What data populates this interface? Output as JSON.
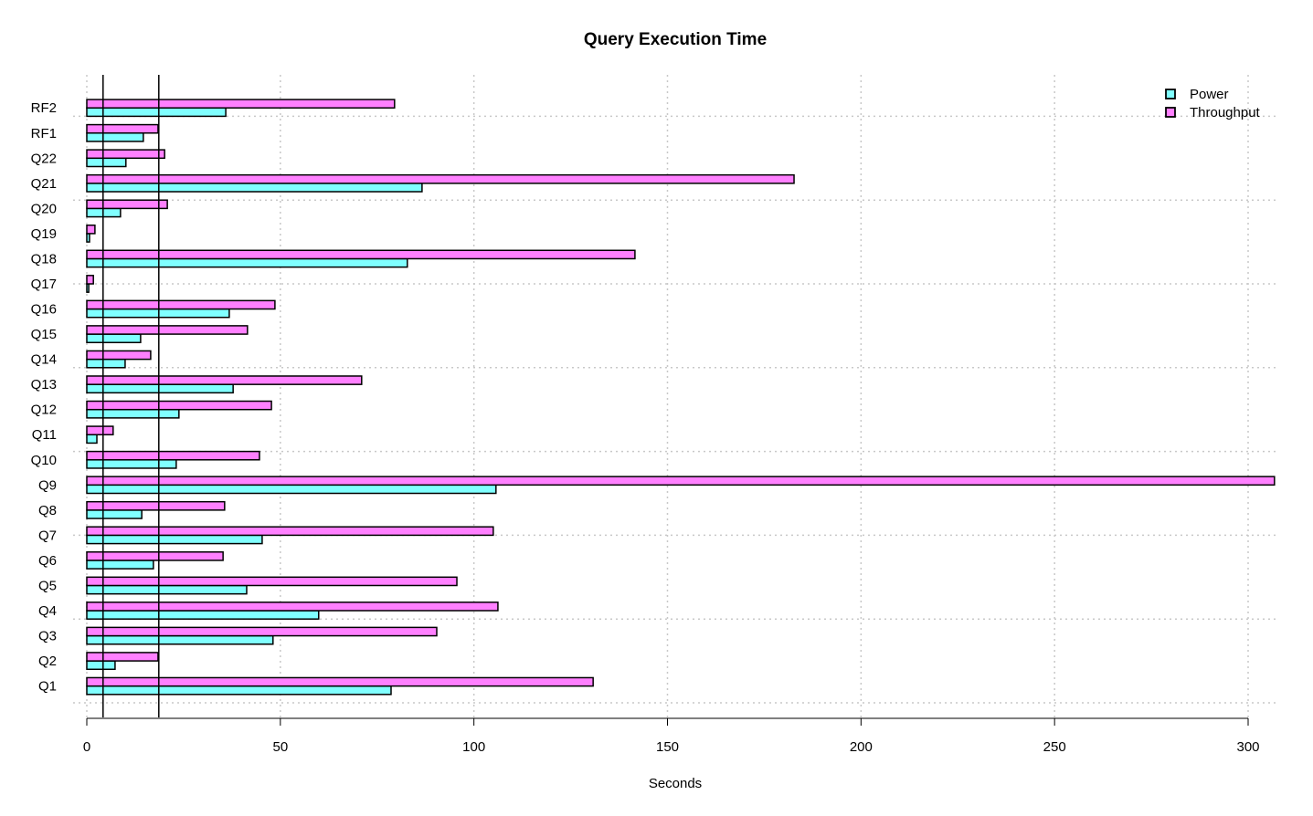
{
  "chart_data": {
    "type": "bar",
    "orientation": "horizontal",
    "title": "Query Execution Time",
    "xlabel": "Seconds",
    "ylabel": "",
    "xlim": [
      0,
      307
    ],
    "x_ticks": [
      0,
      50,
      100,
      150,
      200,
      250,
      300
    ],
    "grid": true,
    "legend_position": "top-right",
    "categories": [
      "Q1",
      "Q2",
      "Q3",
      "Q4",
      "Q5",
      "Q6",
      "Q7",
      "Q8",
      "Q9",
      "Q10",
      "Q11",
      "Q12",
      "Q13",
      "Q14",
      "Q15",
      "Q16",
      "Q17",
      "Q18",
      "Q19",
      "Q20",
      "Q21",
      "Q22",
      "RF1",
      "RF2"
    ],
    "series": [
      {
        "name": "Power",
        "color": "#80ffff",
        "values": [
          78.6,
          7.3,
          48.1,
          59.9,
          41.3,
          17.2,
          45.3,
          14.2,
          105.7,
          23.1,
          2.6,
          23.8,
          37.8,
          9.9,
          13.9,
          36.8,
          0.5,
          82.8,
          0.7,
          8.7,
          86.6,
          10.1,
          14.6,
          35.9
        ]
      },
      {
        "name": "Throughput",
        "color": "#ff80ff",
        "values": [
          130.8,
          18.4,
          90.4,
          106.2,
          95.6,
          35.2,
          105.0,
          35.6,
          306.8,
          44.6,
          6.8,
          47.7,
          71.0,
          16.5,
          41.5,
          48.6,
          1.7,
          141.6,
          2.1,
          20.8,
          182.7,
          20.1,
          18.4,
          79.5
        ]
      }
    ],
    "reference_lines": [
      4.2,
      18.6
    ]
  }
}
